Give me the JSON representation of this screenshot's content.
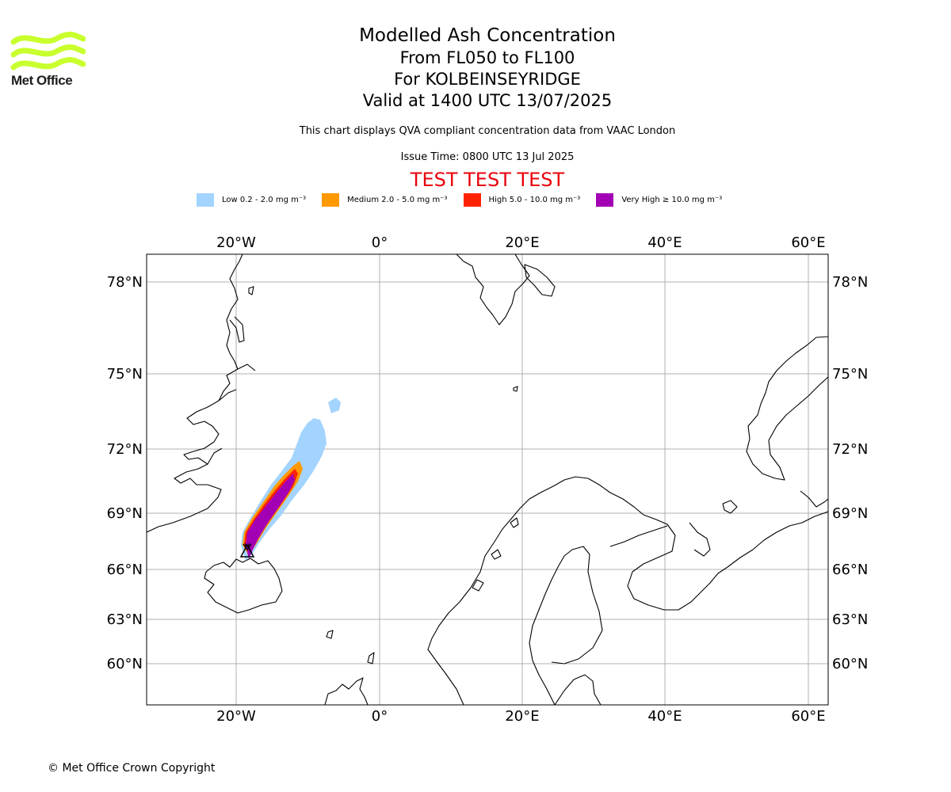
{
  "logo": {
    "name": "met-office-logo",
    "text": "Met Office",
    "color": "#c8ff2d"
  },
  "title": {
    "line1": "Modelled Ash Concentration",
    "line2": "From FL050 to FL100",
    "line3": "For KOLBEINSEYRIDGE",
    "line4": "Valid at 1400 UTC 13/07/2025"
  },
  "note": "This chart displays QVA compliant concentration data from VAAC London",
  "issue_time": "Issue Time: 0800 UTC 13 Jul 2025",
  "test_banner": "TEST TEST TEST",
  "legend": [
    {
      "label": "Low 0.2 - 2.0 mg m⁻³",
      "color": "#a3d4ff"
    },
    {
      "label": "Medium 2.0 - 5.0 mg m⁻³",
      "color": "#ff9900"
    },
    {
      "label": "High 5.0 - 10.0 mg m⁻³",
      "color": "#ff2200"
    },
    {
      "label": "Very High ≥ 10.0 mg m⁻³",
      "color": "#a300b5"
    }
  ],
  "map": {
    "lon_labels": [
      "20°W",
      "0°",
      "20°E",
      "40°E",
      "60°E"
    ],
    "lat_labels": [
      "78°N",
      "75°N",
      "72°N",
      "69°N",
      "66°N",
      "63°N",
      "60°N"
    ],
    "grid": true,
    "source_marker": "volcano-triangle"
  },
  "copyright": "© Met Office Crown Copyright"
}
